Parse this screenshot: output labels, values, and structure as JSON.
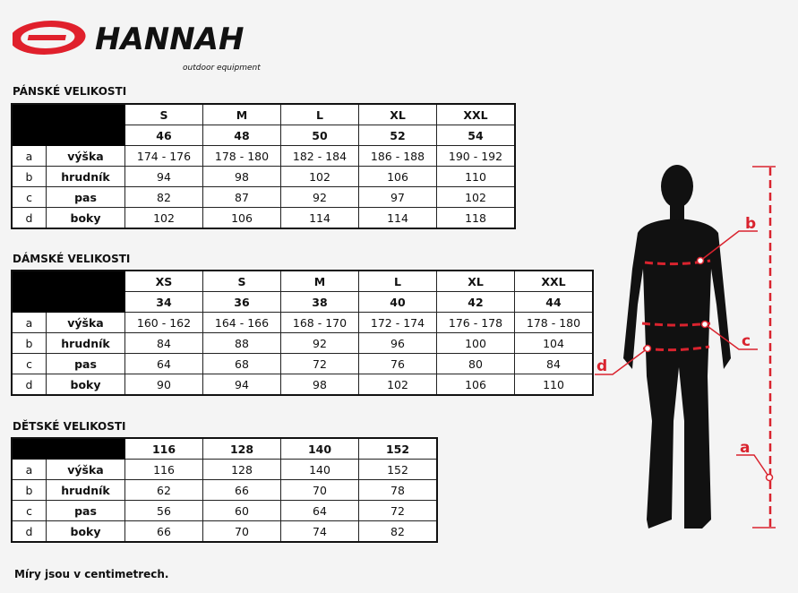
{
  "brand": {
    "name": "HANNAH",
    "tagline": "outdoor equipment",
    "color": "#e0202c"
  },
  "men": {
    "title": "PÁNSKÉ VELIKOSTI",
    "sizes": [
      "S",
      "M",
      "L",
      "XL",
      "XXL"
    ],
    "eu": [
      "46",
      "48",
      "50",
      "52",
      "54"
    ],
    "rows": [
      {
        "key": "a",
        "label": "výška",
        "values": [
          "174 - 176",
          "178 - 180",
          "182 - 184",
          "186 - 188",
          "190 - 192"
        ]
      },
      {
        "key": "b",
        "label": "hrudník",
        "values": [
          "94",
          "98",
          "102",
          "106",
          "110"
        ]
      },
      {
        "key": "c",
        "label": "pas",
        "values": [
          "82",
          "87",
          "92",
          "97",
          "102"
        ]
      },
      {
        "key": "d",
        "label": "boky",
        "values": [
          "102",
          "106",
          "114",
          "114",
          "118"
        ]
      }
    ]
  },
  "women": {
    "title": "DÁMSKÉ VELIKOSTI",
    "sizes": [
      "XS",
      "S",
      "M",
      "L",
      "XL",
      "XXL"
    ],
    "eu": [
      "34",
      "36",
      "38",
      "40",
      "42",
      "44"
    ],
    "rows": [
      {
        "key": "a",
        "label": "výška",
        "values": [
          "160 - 162",
          "164 - 166",
          "168 - 170",
          "172 - 174",
          "176 - 178",
          "178 - 180"
        ]
      },
      {
        "key": "b",
        "label": "hrudník",
        "values": [
          "84",
          "88",
          "92",
          "96",
          "100",
          "104"
        ]
      },
      {
        "key": "c",
        "label": "pas",
        "values": [
          "64",
          "68",
          "72",
          "76",
          "80",
          "84"
        ]
      },
      {
        "key": "d",
        "label": "boky",
        "values": [
          "90",
          "94",
          "98",
          "102",
          "106",
          "110"
        ]
      }
    ]
  },
  "kids": {
    "title": "DĚTSKÉ VELIKOSTI",
    "sizes": [
      "116",
      "128",
      "140",
      "152"
    ],
    "rows": [
      {
        "key": "a",
        "label": "výška",
        "values": [
          "116",
          "128",
          "140",
          "152"
        ]
      },
      {
        "key": "b",
        "label": "hrudník",
        "values": [
          "62",
          "66",
          "70",
          "78"
        ]
      },
      {
        "key": "c",
        "label": "pas",
        "values": [
          "56",
          "60",
          "64",
          "72"
        ]
      },
      {
        "key": "d",
        "label": "boky",
        "values": [
          "66",
          "70",
          "74",
          "82"
        ]
      }
    ]
  },
  "figure": {
    "labels": {
      "a": "a",
      "b": "b",
      "c": "c",
      "d": "d"
    },
    "line_color": "#d9232e"
  },
  "note": "Míry jsou v centimetrech."
}
